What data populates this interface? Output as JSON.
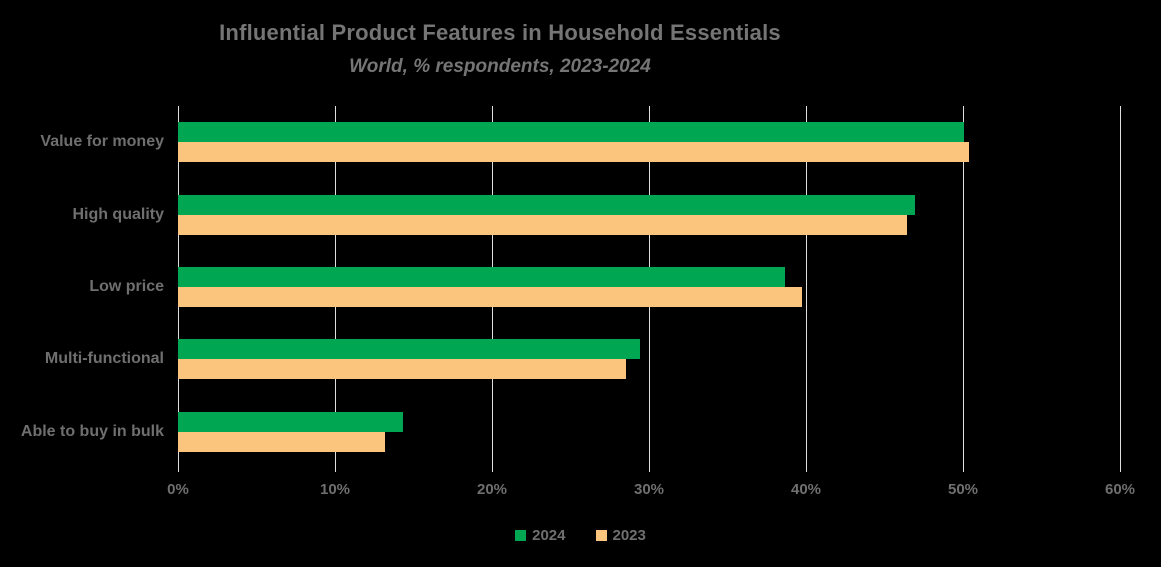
{
  "chart_data": {
    "type": "bar",
    "orientation": "horizontal",
    "title": "Influential Product Features in Household Essentials",
    "subtitle": "World, % respondents, 2023-2024",
    "categories": [
      "Value for money",
      "High quality",
      "Low price",
      "Multi-functional",
      "Able to buy in bulk"
    ],
    "series": [
      {
        "name": "2024",
        "color": "#00a651",
        "values": [
          50.0,
          46.9,
          38.6,
          29.4,
          14.3
        ]
      },
      {
        "name": "2023",
        "color": "#fbc57e",
        "values": [
          50.3,
          46.4,
          39.7,
          28.5,
          13.2
        ]
      }
    ],
    "x_axis": {
      "min": 0,
      "max": 60,
      "tick_step": 10,
      "tick_labels": [
        "0%",
        "10%",
        "20%",
        "30%",
        "40%",
        "50%",
        "60%"
      ],
      "unit": "%"
    },
    "legend": {
      "position": "bottom",
      "entries": [
        {
          "label": "2024",
          "color": "#00a651"
        },
        {
          "label": "2023",
          "color": "#fbc57e"
        }
      ]
    },
    "grid": "vertical-gridlines-on",
    "colors": {
      "background": "#000000",
      "gridline": "#dedede",
      "text": "#6f6f6f",
      "title_text": "#757575"
    }
  }
}
